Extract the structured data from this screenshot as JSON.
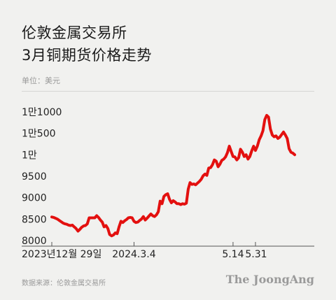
{
  "header": {
    "line1": "伦敦金属交易所",
    "line2": "3月铜期货价格走势",
    "unit": "单位：美元"
  },
  "footer": {
    "source": "数据来源：伦敦金属交易所",
    "brand": "The JoongAng"
  },
  "colors": {
    "line": "#e3100f",
    "axis": "#555555",
    "background": "#f1f1ef"
  },
  "chart_data": {
    "type": "line",
    "title": "3月铜期货价格走势",
    "ylim": [
      8000,
      11000
    ],
    "y_ticks": [
      {
        "value": 8000,
        "label": "8000"
      },
      {
        "value": 8500,
        "label": "8500"
      },
      {
        "value": 9000,
        "label": "9000"
      },
      {
        "value": 9500,
        "label": "9500"
      },
      {
        "value": 10000,
        "label": "1만"
      },
      {
        "value": 10500,
        "label": "1만500"
      },
      {
        "value": 11000,
        "label": "1만1000"
      }
    ],
    "x_ticks": [
      {
        "index": 0,
        "label": "2023년12월 29일"
      },
      {
        "index": 44,
        "label": "2024.3.4"
      },
      {
        "index": 97,
        "label": "5.14"
      },
      {
        "index": 109,
        "label": "5.31"
      }
    ],
    "grid": false,
    "series": [
      {
        "values": [
          8550,
          8540,
          8520,
          8500,
          8470,
          8440,
          8410,
          8390,
          8380,
          8360,
          8350,
          8360,
          8320,
          8280,
          8220,
          8260,
          8310,
          8340,
          8350,
          8390,
          8530,
          8530,
          8530,
          8530,
          8580,
          8540,
          8480,
          8430,
          8320,
          8350,
          8280,
          8140,
          8110,
          8130,
          8180,
          8160,
          8320,
          8450,
          8420,
          8460,
          8490,
          8530,
          8540,
          8530,
          8450,
          8420,
          8430,
          8470,
          8500,
          8560,
          8480,
          8520,
          8570,
          8620,
          8580,
          8560,
          8600,
          8670,
          8920,
          8860,
          9030,
          9070,
          9090,
          8960,
          8880,
          8930,
          8900,
          8860,
          8860,
          8840,
          8860,
          8850,
          8870,
          9200,
          9350,
          9310,
          9320,
          9300,
          9340,
          9380,
          9430,
          9510,
          9550,
          9520,
          9690,
          9700,
          9770,
          9880,
          9850,
          9720,
          9780,
          9870,
          9900,
          9950,
          10050,
          10200,
          10080,
          9960,
          9950,
          9880,
          9930,
          10130,
          10060,
          9960,
          10000,
          9900,
          9960,
          10090,
          10200,
          10100,
          10200,
          10350,
          10440,
          10560,
          10820,
          10920,
          10880,
          10600,
          10460,
          10420,
          10440,
          10380,
          10410,
          10470,
          10530,
          10460,
          10380,
          10140,
          10060,
          10040,
          10000
        ]
      }
    ]
  }
}
